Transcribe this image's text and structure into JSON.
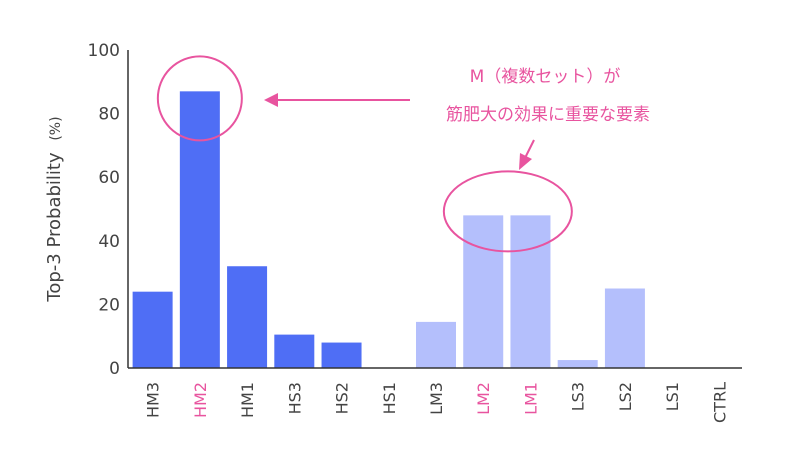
{
  "chart_data": {
    "type": "bar",
    "title": "",
    "xlabel": "",
    "ylabel": "Top-3 Probability",
    "ylabel_unit": "(%)",
    "ylim": [
      0,
      100
    ],
    "yticks": [
      0,
      20,
      40,
      60,
      80,
      100
    ],
    "grid": false,
    "categories": [
      "HM3",
      "HM2",
      "HM1",
      "HS3",
      "HS2",
      "HS1",
      "LM3",
      "LM2",
      "LM1",
      "LS3",
      "LS2",
      "LS1",
      "CTRL"
    ],
    "values": [
      24,
      87,
      32,
      10.5,
      8,
      0,
      14.5,
      48,
      48,
      2.5,
      25,
      0,
      0
    ],
    "groups": [
      "H",
      "H",
      "H",
      "H",
      "H",
      "H",
      "L",
      "L",
      "L",
      "L",
      "L",
      "L",
      "C"
    ],
    "highlighted_categories": [
      "HM2",
      "LM2",
      "LM1"
    ],
    "annotation": {
      "line1": "M（複数セット）が",
      "line2": "筋肥大の効果に重要な要素"
    }
  },
  "colors": {
    "high_group_bar": "#4f6ef5",
    "low_group_bar": "#b4bffc",
    "highlight": "#e8549f",
    "axis": "#333333",
    "tick_text": "#444444"
  }
}
